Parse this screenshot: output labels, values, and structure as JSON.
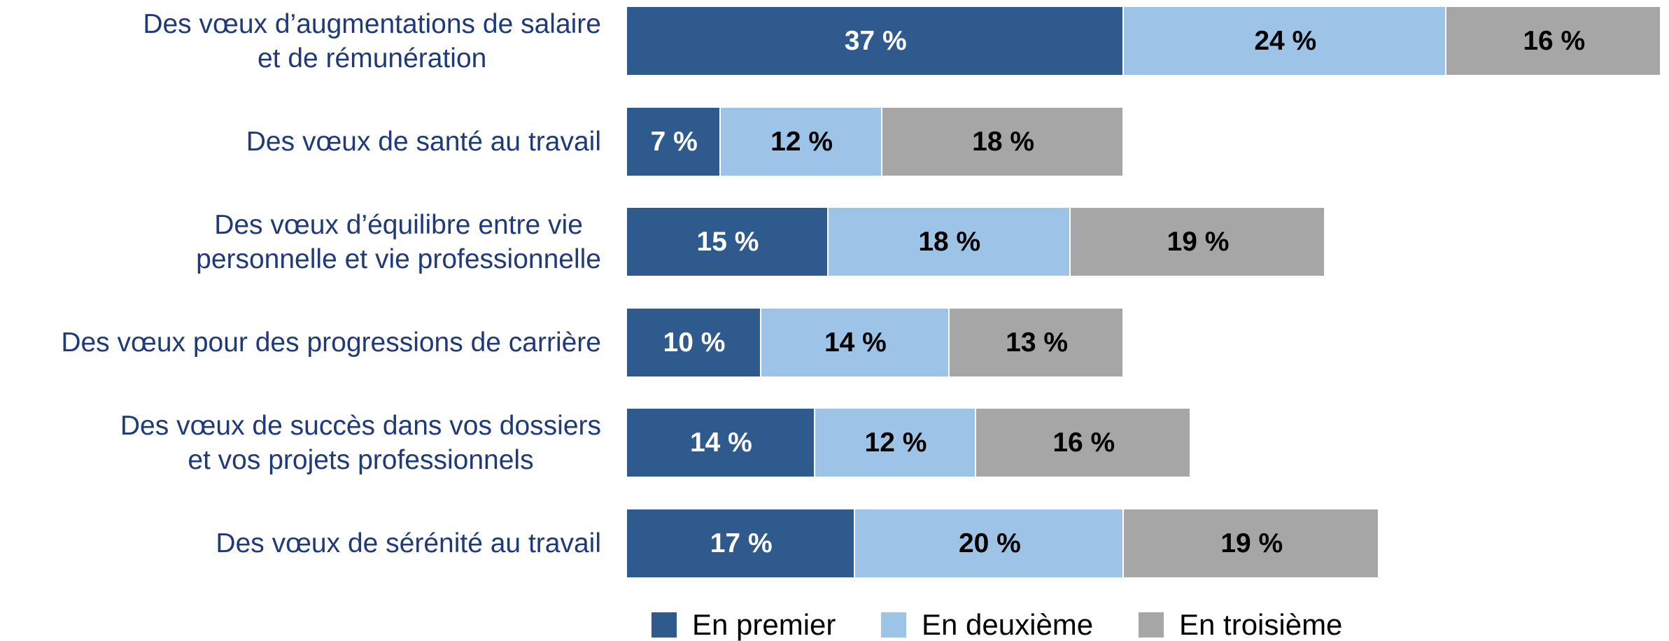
{
  "chart_data": {
    "type": "stacked_bar_horizontal",
    "categories": [
      "Des vœux d’augmentations de salaire\net de rémunération",
      "Des vœux de santé au travail",
      "Des vœux d’équilibre entre vie\npersonnelle et vie professionnelle",
      "Des vœux pour des progressions de carrière",
      "Des vœux de succès dans vos dossiers\net vos projets professionnels",
      "Des vœux de sérénité au travail"
    ],
    "series": [
      {
        "name": "En premier",
        "color": "#2e5a8e",
        "values": [
          37,
          7,
          15,
          10,
          14,
          17
        ],
        "value_labels": [
          "37 %",
          "7 %",
          "15 %",
          "10 %",
          "14 %",
          "17 %"
        ]
      },
      {
        "name": "En deuxième",
        "color": "#9dc3e6",
        "values": [
          24,
          12,
          18,
          14,
          12,
          20
        ],
        "value_labels": [
          "24 %",
          "12 %",
          "18 %",
          "14 %",
          "12 %",
          "20 %"
        ]
      },
      {
        "name": "En troisième",
        "color": "#a6a6a6",
        "values": [
          16,
          18,
          19,
          13,
          16,
          19
        ],
        "value_labels": [
          "16 %",
          "18 %",
          "19 %",
          "13 %",
          "16 %",
          "19 %"
        ]
      }
    ],
    "legend": "bottom"
  }
}
